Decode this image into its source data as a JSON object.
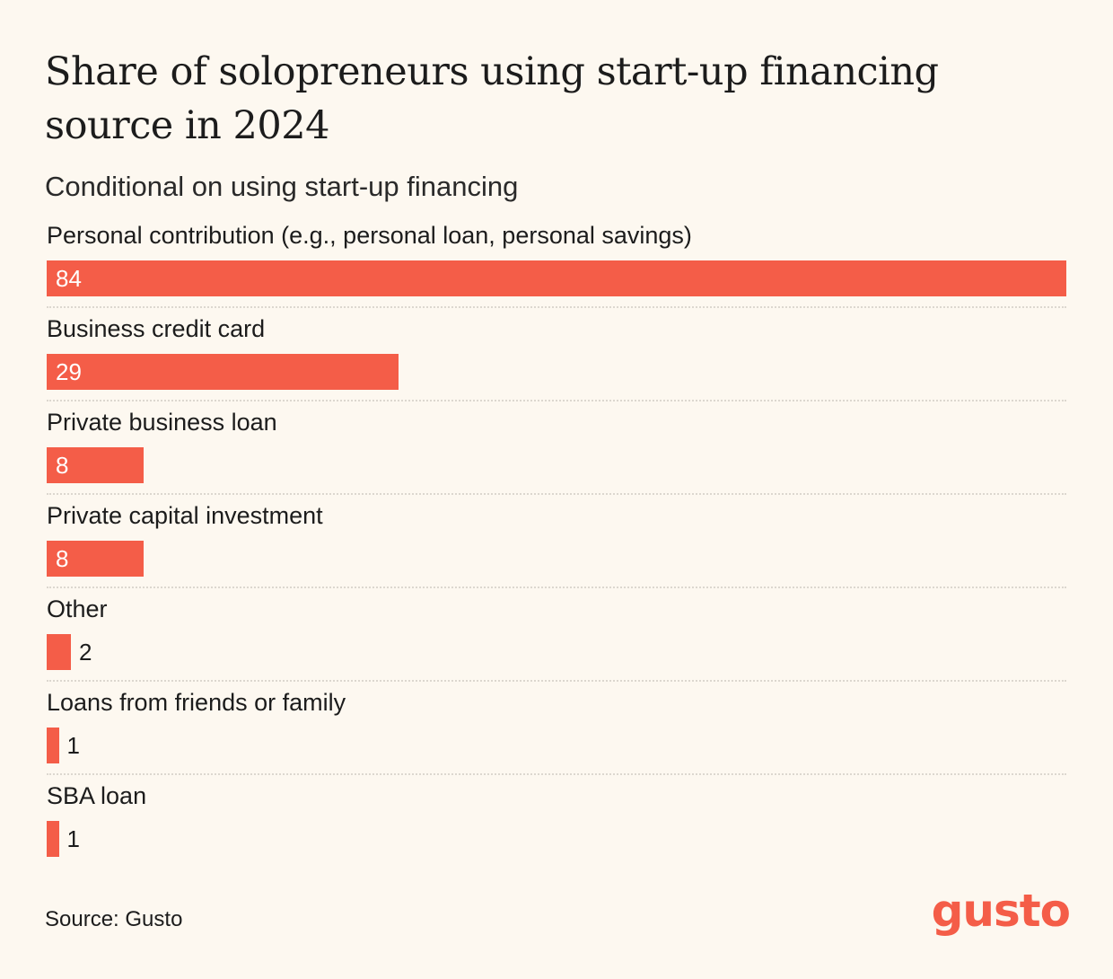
{
  "chart_data": {
    "type": "bar",
    "orientation": "horizontal",
    "title": "Share of solopreneurs using start-up financing source in 2024",
    "subtitle": "Conditional on using start-up financing",
    "categories": [
      "Personal contribution (e.g., personal loan, personal savings)",
      "Business credit card",
      "Private business loan",
      "Private capital investment",
      "Other",
      "Loans from friends or family",
      "SBA loan"
    ],
    "values": [
      84,
      29,
      8,
      8,
      2,
      1,
      1
    ],
    "xlim": [
      0,
      84
    ],
    "bar_color": "#f45d48",
    "grid": false,
    "legend": "none"
  },
  "source": "Source: Gusto",
  "logo": "gusto",
  "colors": {
    "background": "#fdf8f0",
    "accent": "#f45d48",
    "text": "#1c1c1c"
  }
}
